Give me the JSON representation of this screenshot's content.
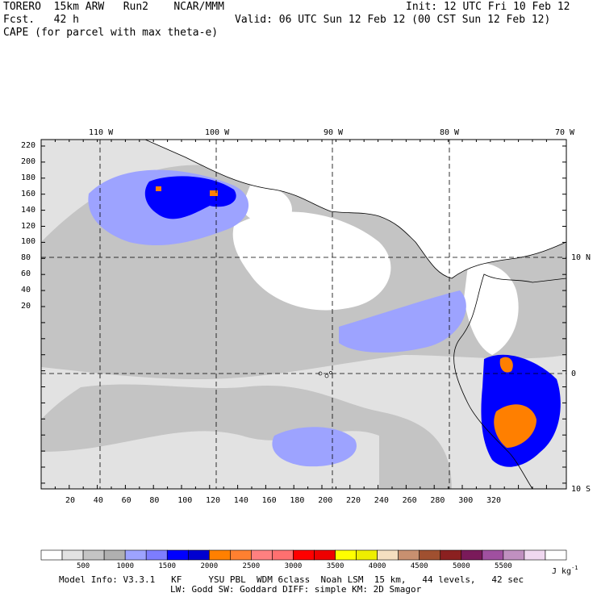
{
  "header": {
    "model": "TORERO  15km ARW   Run2    NCAR/MMM",
    "init": "Init: 12 UTC Fri 10 Feb 12",
    "fcst": "Fcst.   42 h",
    "valid": "Valid: 06 UTC Sun 12 Feb 12 (00 CST Sun 12 Feb 12)",
    "field": "CAPE (for parcel with max theta-e)"
  },
  "map": {
    "lon_labels": [
      "110 W",
      "100 W",
      "90 W",
      "80 W",
      "70 W"
    ],
    "lat_labels": [
      "10 N",
      "0",
      "10 S"
    ],
    "y_ticks": [
      "220",
      "200",
      "180",
      "160",
      "140",
      "120",
      "100",
      "80",
      "60",
      "40",
      "20"
    ],
    "x_ticks": [
      "20",
      "40",
      "60",
      "80",
      "100",
      "120",
      "140",
      "160",
      "180",
      "200",
      "220",
      "240",
      "260",
      "280",
      "300",
      "320"
    ],
    "colors": {
      "land": "#ffffff",
      "light_gray": "#e2e2e2",
      "mid_gray": "#c4c4c4",
      "dark_gray": "#b0b0b0",
      "light_blue": "#9da3ff",
      "med_blue": "#6f6fff",
      "blue": "#0000ff",
      "dark_blue": "#0000cc",
      "orange": "#ff7f00"
    }
  },
  "colorbar": {
    "labels": [
      "500",
      "1000",
      "1500",
      "2000",
      "2500",
      "3000",
      "3500",
      "4000",
      "4500",
      "5000",
      "5500"
    ],
    "units": "J kg",
    "units_exp": "-1",
    "colors": [
      "#ffffff",
      "#e2e2e2",
      "#c4c4c4",
      "#b0b0b0",
      "#9da3ff",
      "#7d7dff",
      "#0000ff",
      "#0000d0",
      "#ff8000",
      "#ff8030",
      "#ff8080",
      "#ff7070",
      "#ff0000",
      "#ee0000",
      "#ffff00",
      "#eeee00",
      "#f5dfc0",
      "#c89070",
      "#a05030",
      "#8b2020",
      "#7a1a5a",
      "#a050a0",
      "#c090c0",
      "#f0d8f0",
      "#ffffff"
    ]
  },
  "info": {
    "line1": "Model Info: V3.3.1   KF     YSU PBL  WDM 6class  Noah LSM  15 km,   44 levels,   42 sec",
    "line2": "LW: Godd SW: Goddard DIFF: simple KM: 2D Smagor"
  }
}
